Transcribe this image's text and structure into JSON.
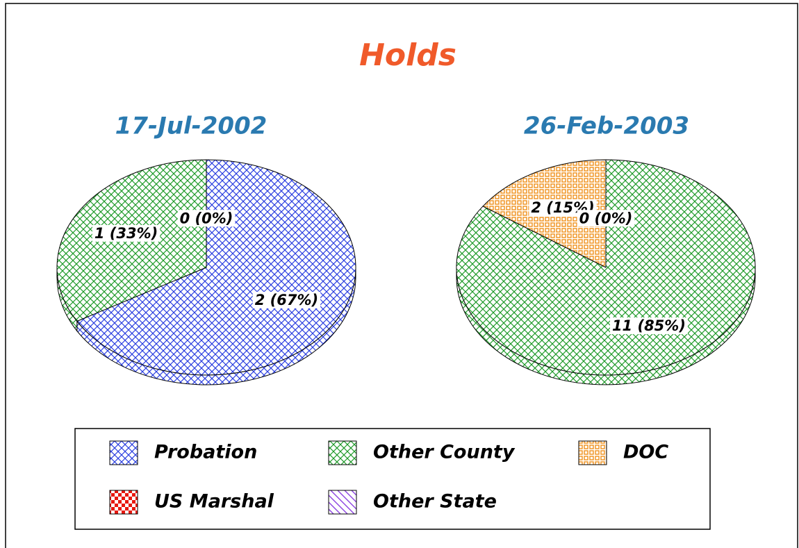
{
  "title": "Holds",
  "legend": {
    "categories": [
      "Probation",
      "Other County",
      "DOC",
      "US Marshal",
      "Other State"
    ],
    "colors": [
      "#2b3fe0",
      "#1f9a2a",
      "#f0901a",
      "#e8190f",
      "#8a3fe0"
    ],
    "patterns": [
      "crosshatch",
      "crosshatch",
      "grid",
      "checker",
      "diagonal"
    ]
  },
  "chart_data": [
    {
      "type": "pie",
      "title": "17-Jul-2002",
      "categories": [
        "Probation",
        "Other County",
        "DOC"
      ],
      "values": [
        2,
        1,
        0
      ],
      "value_labels": [
        "2 (67%)",
        "1 (33%)",
        "0 (0%)"
      ]
    },
    {
      "type": "pie",
      "title": "26-Feb-2003",
      "categories": [
        "Other County",
        "DOC",
        "Probation"
      ],
      "values": [
        11,
        2,
        0
      ],
      "value_labels": [
        "11 (85%)",
        "2 (15%)",
        "0 (0%)"
      ]
    }
  ]
}
